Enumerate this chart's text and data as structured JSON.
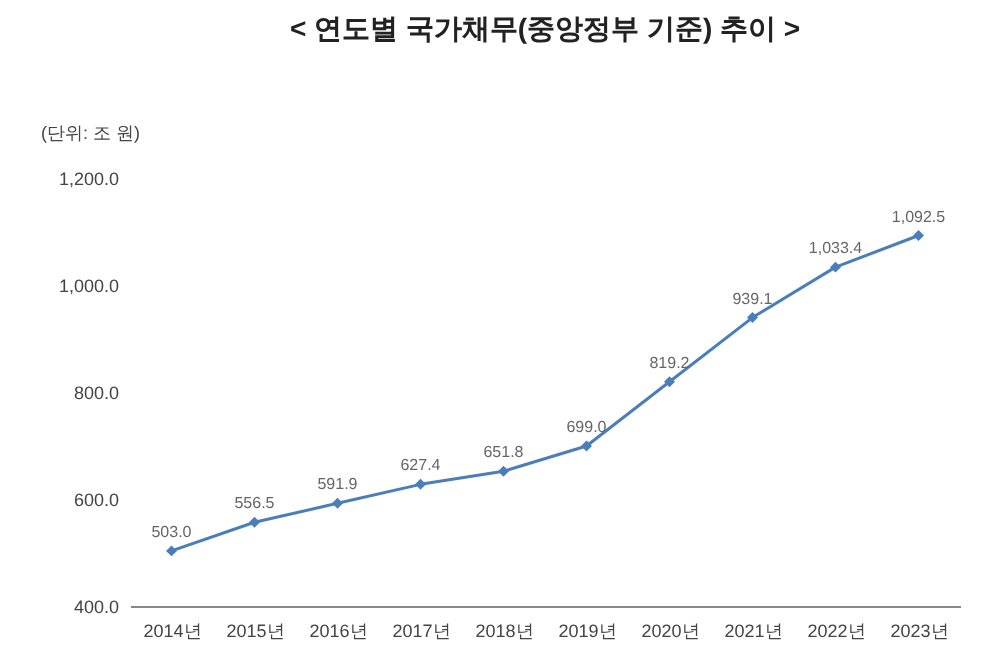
{
  "chart_data": {
    "type": "line",
    "title": "< 연도별 국가채무(중앙정부 기준) 추이 >",
    "ylabel": "(단위: 조 원)",
    "categories": [
      "2014년",
      "2015년",
      "2016년",
      "2017년",
      "2018년",
      "2019년",
      "2020년",
      "2021년",
      "2022년",
      "2023년"
    ],
    "series": [
      {
        "color": "#4a7ebb",
        "values": [
          503.0,
          556.5,
          591.9,
          627.4,
          651.8,
          699.0,
          819.2,
          939.1,
          1033.4,
          1092.5
        ]
      }
    ],
    "ylim": [
      400,
      1200
    ],
    "yticks": [
      {
        "value": 400,
        "label": "400.0"
      },
      {
        "value": 600,
        "label": "600.0"
      },
      {
        "value": 800,
        "label": "800.0"
      },
      {
        "value": 1000,
        "label": "1,000.0"
      },
      {
        "value": 1200,
        "label": "1,200.0"
      }
    ],
    "value_labels": [
      "503.0",
      "556.5",
      "591.9",
      "627.4",
      "651.8",
      "699.0",
      "819.2",
      "939.1",
      "1,033.4",
      "1,092.5"
    ],
    "grid": false,
    "marker": "diamond",
    "line_style": "solid",
    "legend": false
  }
}
